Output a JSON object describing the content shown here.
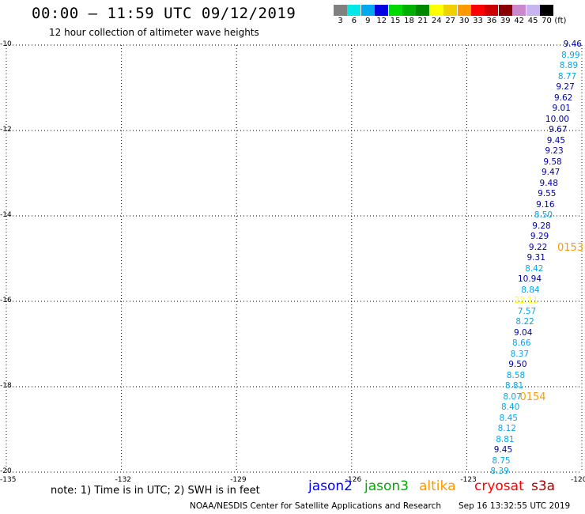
{
  "header": {
    "title": "00:00 – 11:59 UTC 09/12/2019",
    "subtitle": "12 hour collection of altimeter wave heights"
  },
  "color_scale": {
    "unit": "(ft)",
    "boxes": [
      {
        "label": "3",
        "color": "#808080"
      },
      {
        "label": "6",
        "color": "#00e8e8"
      },
      {
        "label": "9",
        "color": "#00a8f0"
      },
      {
        "label": "12",
        "color": "#0000e0"
      },
      {
        "label": "15",
        "color": "#00d800"
      },
      {
        "label": "18",
        "color": "#00b000"
      },
      {
        "label": "21",
        "color": "#008800"
      },
      {
        "label": "24",
        "color": "#ffff00"
      },
      {
        "label": "27",
        "color": "#f0d000"
      },
      {
        "label": "30",
        "color": "#ff9900"
      },
      {
        "label": "33",
        "color": "#ff0000"
      },
      {
        "label": "36",
        "color": "#cc0000"
      },
      {
        "label": "39",
        "color": "#880000"
      },
      {
        "label": "42",
        "color": "#cc88cc"
      },
      {
        "label": "45",
        "color": "#c8b4f0"
      },
      {
        "label": "70",
        "color": "#000000"
      }
    ]
  },
  "map": {
    "lon_ticks": [
      "-135",
      "-132",
      "-129",
      "-126",
      "-123",
      "-120"
    ],
    "lat_ticks": [
      "-10",
      "-12",
      "-14",
      "-16",
      "-18",
      "-20"
    ],
    "lon_range": [
      -135,
      -120
    ],
    "lat_range": [
      -20,
      -10
    ],
    "grid": "dotted"
  },
  "wave_heights": [
    {
      "value": "9.46",
      "lat": -10.0,
      "lon": -120.0,
      "color": "#0000a0"
    },
    {
      "value": "8.99",
      "lat": -10.25,
      "lon": -120.05,
      "color": "#00a8f0"
    },
    {
      "value": "8.89",
      "lat": -10.5,
      "lon": -120.1,
      "color": "#00a8f0"
    },
    {
      "value": "8.77",
      "lat": -10.75,
      "lon": -120.14,
      "color": "#00a8f0"
    },
    {
      "value": "9.27",
      "lat": -11.0,
      "lon": -120.19,
      "color": "#0000a0"
    },
    {
      "value": "9.62",
      "lat": -11.25,
      "lon": -120.24,
      "color": "#0000a0"
    },
    {
      "value": "9.01",
      "lat": -11.5,
      "lon": -120.29,
      "color": "#0000a0"
    },
    {
      "value": "10.00",
      "lat": -11.75,
      "lon": -120.33,
      "color": "#0000a0"
    },
    {
      "value": "9.67",
      "lat": -12.0,
      "lon": -120.38,
      "color": "#0000a0"
    },
    {
      "value": "9.45",
      "lat": -12.25,
      "lon": -120.43,
      "color": "#0000a0"
    },
    {
      "value": "9.23",
      "lat": -12.5,
      "lon": -120.48,
      "color": "#0000a0"
    },
    {
      "value": "9.58",
      "lat": -12.75,
      "lon": -120.52,
      "color": "#0000a0"
    },
    {
      "value": "9.47",
      "lat": -13.0,
      "lon": -120.57,
      "color": "#0000a0"
    },
    {
      "value": "9.48",
      "lat": -13.25,
      "lon": -120.62,
      "color": "#0000a0"
    },
    {
      "value": "9.55",
      "lat": -13.5,
      "lon": -120.67,
      "color": "#0000a0"
    },
    {
      "value": "9.16",
      "lat": -13.75,
      "lon": -120.71,
      "color": "#0000a0"
    },
    {
      "value": "8.50",
      "lat": -14.0,
      "lon": -120.76,
      "color": "#00a8f0"
    },
    {
      "value": "9.28",
      "lat": -14.25,
      "lon": -120.81,
      "color": "#0000a0"
    },
    {
      "value": "9.29",
      "lat": -14.5,
      "lon": -120.86,
      "color": "#0000a0"
    },
    {
      "value": "9.22",
      "lat": -14.75,
      "lon": -120.9,
      "color": "#0000a0"
    },
    {
      "value": "9.31",
      "lat": -15.0,
      "lon": -120.95,
      "color": "#0000a0"
    },
    {
      "value": "8.42",
      "lat": -15.25,
      "lon": -121.0,
      "color": "#00a8f0"
    },
    {
      "value": "10.94",
      "lat": -15.5,
      "lon": -121.05,
      "color": "#0000a0"
    },
    {
      "value": "8.84",
      "lat": -15.75,
      "lon": -121.1,
      "color": "#00a8f0"
    },
    {
      "value": "22.11",
      "lat": -16.0,
      "lon": -121.14,
      "color": "#ffff00"
    },
    {
      "value": "7.57",
      "lat": -16.25,
      "lon": -121.19,
      "color": "#00a8f0"
    },
    {
      "value": "8.22",
      "lat": -16.5,
      "lon": -121.24,
      "color": "#00a8f0"
    },
    {
      "value": "9.04",
      "lat": -16.75,
      "lon": -121.29,
      "color": "#0000a0"
    },
    {
      "value": "8.66",
      "lat": -17.0,
      "lon": -121.33,
      "color": "#00a8f0"
    },
    {
      "value": "8.37",
      "lat": -17.25,
      "lon": -121.38,
      "color": "#00a8f0"
    },
    {
      "value": "9.50",
      "lat": -17.5,
      "lon": -121.43,
      "color": "#0000a0"
    },
    {
      "value": "8.58",
      "lat": -17.75,
      "lon": -121.48,
      "color": "#00a8f0"
    },
    {
      "value": "8.81",
      "lat": -18.0,
      "lon": -121.52,
      "color": "#00a8f0"
    },
    {
      "value": "8.07",
      "lat": -18.25,
      "lon": -121.57,
      "color": "#00a8f0"
    },
    {
      "value": "8.40",
      "lat": -18.5,
      "lon": -121.62,
      "color": "#00a8f0"
    },
    {
      "value": "8.45",
      "lat": -18.75,
      "lon": -121.67,
      "color": "#00a8f0"
    },
    {
      "value": "8.12",
      "lat": -19.0,
      "lon": -121.71,
      "color": "#00a8f0"
    },
    {
      "value": "8.81",
      "lat": -19.25,
      "lon": -121.76,
      "color": "#00a8f0"
    },
    {
      "value": "9.45",
      "lat": -19.5,
      "lon": -121.81,
      "color": "#0000a0"
    },
    {
      "value": "8.75",
      "lat": -19.75,
      "lon": -121.86,
      "color": "#00a8f0"
    },
    {
      "value": "8.39",
      "lat": -20.0,
      "lon": -121.9,
      "color": "#00a8f0"
    }
  ],
  "time_labels": [
    {
      "text": "0153",
      "lat": -14.75,
      "lon": -119.95
    },
    {
      "text": "0154",
      "lat": -18.25,
      "lon": -121.0
    }
  ],
  "note": "note: 1) Time is in UTC; 2) SWH is in feet",
  "satellites": [
    {
      "name": "jason2",
      "color": "#0000ff"
    },
    {
      "name": "jason3",
      "color": "#00aa00"
    },
    {
      "name": "altika",
      "color": "#ff9900"
    },
    {
      "name": "cryosat",
      "color": "#ff0000"
    },
    {
      "name": "s3a",
      "color": "#aa0000"
    }
  ],
  "footer": {
    "credit": "NOAA/NESDIS Center for Satellite Applications and Research",
    "generated": "Sep 16 13:32:55 UTC 2019"
  }
}
